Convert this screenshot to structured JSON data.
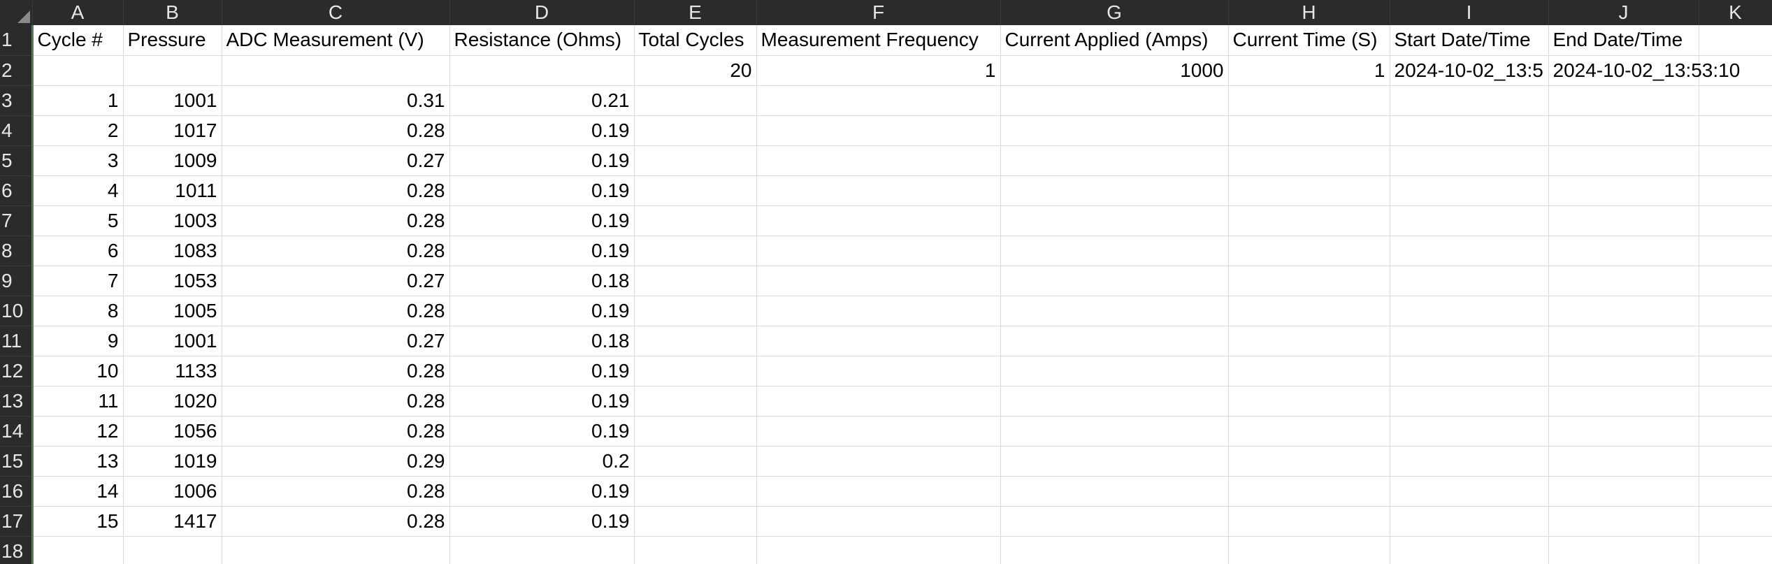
{
  "column_headers": [
    "A",
    "B",
    "C",
    "D",
    "E",
    "F",
    "G",
    "H",
    "I",
    "J",
    "K"
  ],
  "row_numbers": [
    "1",
    "2",
    "3",
    "4",
    "5",
    "6",
    "7",
    "8",
    "9",
    "10",
    "11",
    "12",
    "13",
    "14",
    "15",
    "16",
    "17",
    "18"
  ],
  "header_row": {
    "A": "Cycle #",
    "B": "Pressure",
    "C": "ADC Measurement (V)",
    "D": "Resistance (Ohms)",
    "E": "Total Cycles",
    "F": "Measurement Frequency",
    "G": "Current Applied (Amps)",
    "H": "Current Time (S)",
    "I": "Start Date/Time",
    "J": "End Date/Time"
  },
  "row2": {
    "E": "20",
    "F": "1",
    "G": "1000",
    "H": "1",
    "I": "2024-10-02_13:5",
    "J": "2024-10-02_13:53:10"
  },
  "data_rows": [
    {
      "cycle": "1",
      "pressure": "1001",
      "adc": "0.31",
      "resistance": "0.21"
    },
    {
      "cycle": "2",
      "pressure": "1017",
      "adc": "0.28",
      "resistance": "0.19"
    },
    {
      "cycle": "3",
      "pressure": "1009",
      "adc": "0.27",
      "resistance": "0.19"
    },
    {
      "cycle": "4",
      "pressure": "1011",
      "adc": "0.28",
      "resistance": "0.19"
    },
    {
      "cycle": "5",
      "pressure": "1003",
      "adc": "0.28",
      "resistance": "0.19"
    },
    {
      "cycle": "6",
      "pressure": "1083",
      "adc": "0.28",
      "resistance": "0.19"
    },
    {
      "cycle": "7",
      "pressure": "1053",
      "adc": "0.27",
      "resistance": "0.18"
    },
    {
      "cycle": "8",
      "pressure": "1005",
      "adc": "0.28",
      "resistance": "0.19"
    },
    {
      "cycle": "9",
      "pressure": "1001",
      "adc": "0.27",
      "resistance": "0.18"
    },
    {
      "cycle": "10",
      "pressure": "1133",
      "adc": "0.28",
      "resistance": "0.19"
    },
    {
      "cycle": "11",
      "pressure": "1020",
      "adc": "0.28",
      "resistance": "0.19"
    },
    {
      "cycle": "12",
      "pressure": "1056",
      "adc": "0.28",
      "resistance": "0.19"
    },
    {
      "cycle": "13",
      "pressure": "1019",
      "adc": "0.29",
      "resistance": "0.2"
    },
    {
      "cycle": "14",
      "pressure": "1006",
      "adc": "0.28",
      "resistance": "0.19"
    },
    {
      "cycle": "15",
      "pressure": "1417",
      "adc": "0.28",
      "resistance": "0.19"
    }
  ],
  "colors": {
    "header_bg": "#2b2b2b",
    "header_text": "#e6e6e6",
    "gridline": "#dadada",
    "row_header_accent": "#4e7e52"
  }
}
